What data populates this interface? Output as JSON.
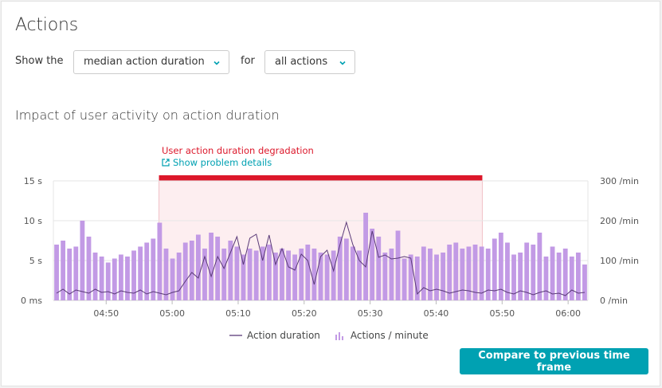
{
  "card": {
    "title": "Actions",
    "show_label": "Show the",
    "for_label": "for",
    "metric_select": "median action duration",
    "scope_select": "all actions",
    "chart_title": "Impact of user activity on action duration",
    "compare_button": "Compare to previous time frame"
  },
  "problem": {
    "title": "User action duration degradation",
    "link": "Show problem details",
    "start": "04:58",
    "end": "05:47",
    "color": "#dc172a"
  },
  "legend": {
    "line": "Action duration",
    "bars": "Actions / minute"
  },
  "colors": {
    "accent": "#00a1b2",
    "bars": "#c29ae5",
    "line": "#5a3a78",
    "problem": "#dc172a"
  },
  "chart_data": {
    "type": "bar",
    "x_ticks": [
      "04:50",
      "05:00",
      "05:10",
      "05:20",
      "05:30",
      "05:40",
      "05:50",
      "06:00"
    ],
    "y_left": {
      "ticks": [
        "0 ms",
        "5 s",
        "10 s",
        "15 s"
      ],
      "range": [
        0,
        15
      ]
    },
    "y_right": {
      "ticks": [
        "0 /min",
        "100 /min",
        "200 /min",
        "300 /min"
      ],
      "range": [
        0,
        300
      ]
    },
    "x_start": "04:42",
    "x_end": "06:03",
    "bar_step_minutes": 1,
    "bars_per_minute": [
      140,
      150,
      130,
      135,
      200,
      160,
      120,
      110,
      95,
      105,
      115,
      110,
      125,
      135,
      145,
      155,
      195,
      130,
      105,
      120,
      145,
      150,
      165,
      130,
      170,
      160,
      130,
      150,
      135,
      115,
      130,
      125,
      135,
      140,
      120,
      130,
      125,
      115,
      130,
      140,
      130,
      120,
      115,
      125,
      160,
      155,
      135,
      125,
      220,
      180,
      160,
      120,
      130,
      175,
      105,
      115,
      110,
      135,
      130,
      115,
      120,
      140,
      145,
      130,
      135,
      140,
      135,
      130,
      155,
      170,
      145,
      115,
      120,
      145,
      140,
      170,
      110,
      135,
      120,
      130,
      110,
      120,
      90
    ],
    "series": [
      {
        "name": "Action duration",
        "axis": "left",
        "unit": "s",
        "values": [
          0.9,
          1.4,
          0.8,
          1.3,
          1.1,
          0.9,
          1.4,
          1.0,
          1.1,
          0.8,
          1.2,
          1.0,
          0.9,
          1.3,
          0.8,
          1.1,
          0.9,
          0.7,
          1.0,
          1.2,
          2.4,
          3.5,
          2.8,
          5.5,
          3.0,
          5.5,
          4.0,
          6.0,
          8.0,
          4.5,
          7.8,
          8.3,
          5.0,
          8.2,
          4.5,
          6.5,
          4.2,
          3.8,
          5.8,
          5.0,
          2.0,
          5.5,
          6.3,
          3.7,
          7.0,
          9.8,
          7.0,
          5.0,
          4.2,
          8.7,
          5.4,
          5.7,
          5.2,
          5.3,
          5.5,
          5.3,
          0.8,
          1.6,
          1.2,
          1.4,
          1.2,
          0.9,
          1.1,
          1.3,
          1.2,
          1.0,
          0.9,
          1.3,
          1.2,
          1.4,
          1.0,
          0.8,
          1.2,
          1.0,
          0.7,
          1.0,
          1.2,
          0.8,
          0.9,
          0.6,
          1.3,
          0.9,
          1.0
        ]
      }
    ],
    "grid": true
  }
}
